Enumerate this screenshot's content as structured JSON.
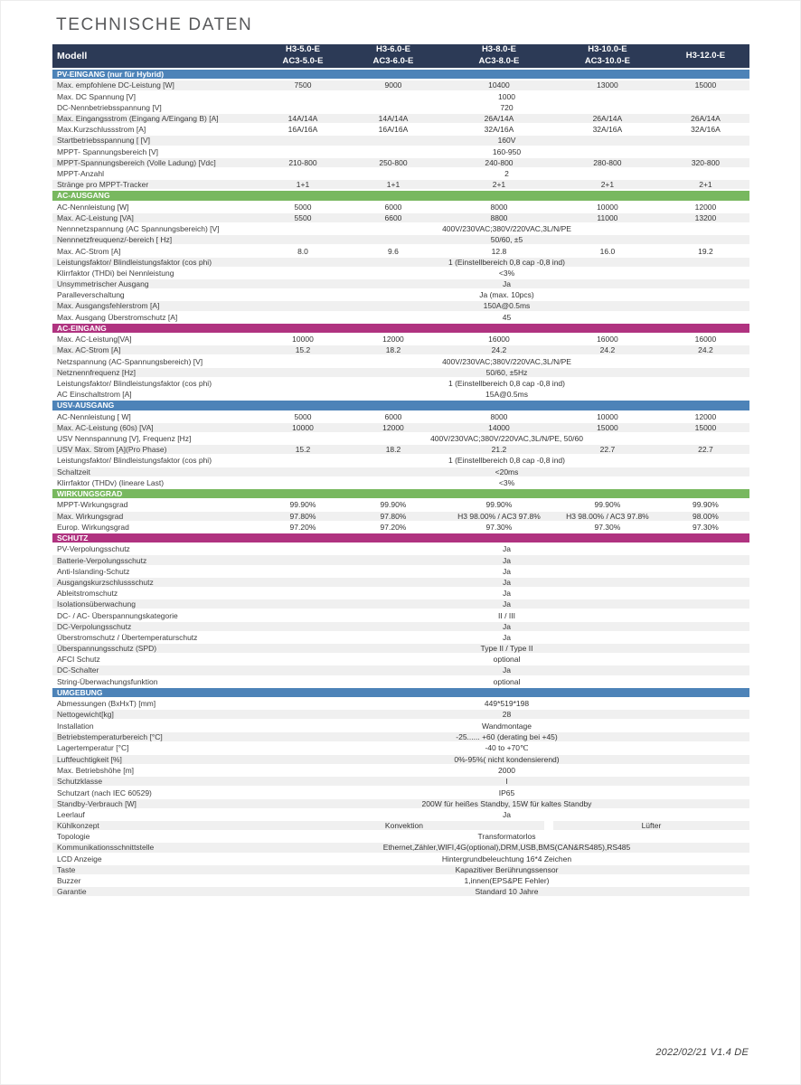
{
  "page": {
    "title": "TECHNISCHE DATEN",
    "footer": "2022/02/21 V1.4 DE"
  },
  "table": {
    "colors": {
      "navy": "#2c3a56",
      "blue": "#4d83b8",
      "green": "#78b85f",
      "magenta": "#b03380",
      "stripe": "#f0f0f0"
    },
    "header": {
      "model_label": "Modell",
      "columns": [
        {
          "line1": "H3-5.0-E",
          "line2": "AC3-5.0-E"
        },
        {
          "line1": "H3-6.0-E",
          "line2": "AC3-6.0-E"
        },
        {
          "line1": "H3-8.0-E",
          "line2": "AC3-8.0-E"
        },
        {
          "line1": "H3-10.0-E",
          "line2": "AC3-10.0-E"
        },
        {
          "line1": "H3-12.0-E",
          "line2": ""
        }
      ]
    },
    "sections": [
      {
        "name": "PV-EINGANG (nur für Hybrid)",
        "color": "blue",
        "gray_rows": [
          0,
          3,
          5,
          7,
          9
        ],
        "rows": [
          {
            "label": "Max. empfohlene DC-Leistung [W]",
            "values": [
              "7500",
              "9000",
              "10400",
              "13000",
              "15000"
            ]
          },
          {
            "label": "Max. DC Spannung [V]",
            "merged": "1000"
          },
          {
            "label": "DC-Nennbetriebsspannung [V]",
            "merged": "720"
          },
          {
            "label": "Max. Eingangsstrom (Eingang A/Eingang B) [A]",
            "values": [
              "14A/14A",
              "14A/14A",
              "26A/14A",
              "26A/14A",
              "26A/14A"
            ]
          },
          {
            "label": "Max.Kurzschlussstrom [A]",
            "values": [
              "16A/16A",
              "16A/16A",
              "32A/16A",
              "32A/16A",
              "32A/16A"
            ]
          },
          {
            "label": "Startbetriebsspannung [ [V]",
            "merged": "160V"
          },
          {
            "label": "MPPT- Spannungsbereich [V]",
            "merged": "160-950"
          },
          {
            "label": "MPPT-Spannungsbereich (Volle Ladung) [Vdc]",
            "values": [
              "210-800",
              "250-800",
              "240-800",
              "280-800",
              "320-800"
            ]
          },
          {
            "label": "MPPT-Anzahl",
            "merged": "2"
          },
          {
            "label": "Stränge pro MPPT-Tracker",
            "values": [
              "1+1",
              "1+1",
              "2+1",
              "2+1",
              "2+1"
            ]
          }
        ]
      },
      {
        "name": "AC-AUSGANG",
        "color": "green",
        "gray_rows": [
          1,
          3,
          5,
          7,
          9
        ],
        "rows": [
          {
            "label": "AC-Nennleistung [W]",
            "values": [
              "5000",
              "6000",
              "8000",
              "10000",
              "12000"
            ]
          },
          {
            "label": "Max. AC-Leistung [VA]",
            "values": [
              "5500",
              "6600",
              "8800",
              "11000",
              "13200"
            ]
          },
          {
            "label": "Nennnetzspannung (AC Spannungsbereich)  [V]",
            "merged": "400V/230VAC;380V/220VAC,3L/N/PE"
          },
          {
            "label": "Nennnetzfreuquenz/-bereich [ Hz]",
            "merged": "50/60, ±5"
          },
          {
            "label": "Max. AC-Strom [A]",
            "values": [
              "8.0",
              "9.6",
              "12.8",
              "16.0",
              "19.2"
            ]
          },
          {
            "label": "Leistungsfaktor/ Blindleistungsfaktor (cos phi)",
            "merged": "1 (Einstellbereich 0,8 cap -0,8 ind)"
          },
          {
            "label": "Klirrfaktor (THDi) bei Nennleistung",
            "merged": "<3%"
          },
          {
            "label": "Unsymmetrischer Ausgang",
            "merged": "Ja"
          },
          {
            "label": "Paralleverschaltung",
            "merged": "Ja (max. 10pcs)"
          },
          {
            "label": "Max. Ausgangsfehlerstrom [A]",
            "merged": "150A@0.5ms"
          },
          {
            "label": "Max. Ausgang Überstromschutz [A]",
            "merged": "45"
          }
        ]
      },
      {
        "name": "AC-EINGANG",
        "color": "magenta",
        "gray_rows": [
          1,
          3
        ],
        "rows": [
          {
            "label": "Max. AC-Leistung[VA]",
            "values": [
              "10000",
              "12000",
              "16000",
              "16000",
              "16000"
            ]
          },
          {
            "label": "Max. AC-Strom [A]",
            "values": [
              "15.2",
              "18.2",
              "24.2",
              "24.2",
              "24.2"
            ]
          },
          {
            "label": "Netzspannung (AC-Spannungsbereich) [V]",
            "merged": "400V/230VAC;380V/220VAC,3L/N/PE"
          },
          {
            "label": "Netznennfrequenz [Hz]",
            "merged": "50/60, ±5Hz"
          },
          {
            "label": "Leistungsfaktor/ Blindleistungsfaktor (cos phi)",
            "merged": "1 (Einstellbereich 0,8 cap -0,8 ind)"
          },
          {
            "label": "AC Einschaltstrom [A]",
            "merged": "15A@0.5ms"
          }
        ]
      },
      {
        "name": "USV-AUSGANG",
        "color": "blue",
        "gray_rows": [
          1,
          3,
          5
        ],
        "rows": [
          {
            "label": "AC-Nennleistung [ W]",
            "values": [
              "5000",
              "6000",
              "8000",
              "10000",
              "12000"
            ]
          },
          {
            "label": "Max. AC-Leistung (60s) [VA]",
            "values": [
              "10000",
              "12000",
              "14000",
              "15000",
              "15000"
            ]
          },
          {
            "label": "USV Nennspannung [V], Frequenz [Hz]",
            "merged": "400V/230VAC;380V/220VAC,3L/N/PE, 50/60"
          },
          {
            "label": "USV Max. Strom [A](Pro Phase)",
            "values": [
              "15.2",
              "18.2",
              "21.2",
              "22.7",
              "22.7"
            ]
          },
          {
            "label": "Leistungsfaktor/ Blindleistungsfaktor (cos phi)",
            "merged": "1 (Einstellbereich 0,8 cap -0,8 ind)"
          },
          {
            "label": "Schaltzeit",
            "merged": "<20ms"
          },
          {
            "label": "Klirrfaktor (THDv) (lineare Last)",
            "merged": "<3%"
          }
        ]
      },
      {
        "name": "WIRKUNGSGRAD",
        "color": "green",
        "gray_rows": [
          1
        ],
        "rows": [
          {
            "label": "MPPT-Wirkungsgrad",
            "values": [
              "99.90%",
              "99.90%",
              "99.90%",
              "99.90%",
              "99.90%"
            ]
          },
          {
            "label": "Max. Wirkungsgrad",
            "values": [
              "97.80%",
              "97.80%",
              "H3 98.00% / AC3 97.8%",
              "H3 98.00% / AC3 97.8%",
              "98.00%"
            ]
          },
          {
            "label": "Europ. Wirkungsgrad",
            "values": [
              "97.20%",
              "97.20%",
              "97.30%",
              "97.30%",
              "97.30%"
            ]
          }
        ]
      },
      {
        "name": "SCHUTZ",
        "color": "magenta",
        "gray_rows": [
          1,
          3,
          5,
          7,
          9,
          11
        ],
        "rows": [
          {
            "label": "PV-Verpolungsschutz",
            "merged": "Ja"
          },
          {
            "label": "Batterie-Verpolungsschutz",
            "merged": "Ja"
          },
          {
            "label": "Anti-Islanding-Schutz",
            "merged": "Ja"
          },
          {
            "label": "Ausgangskurzschlussschutz",
            "merged": "Ja"
          },
          {
            "label": "Ableitstromschutz",
            "merged": "Ja"
          },
          {
            "label": "Isolationsüberwachung",
            "merged": "Ja"
          },
          {
            "label": "DC- / AC- Überspannungskategorie",
            "merged": "II / III"
          },
          {
            "label": "DC-Verpolungsschutz",
            "merged": "Ja"
          },
          {
            "label": "Überstromschutz / Übertemperaturschutz",
            "merged": "Ja"
          },
          {
            "label": "Überspannungsschutz (SPD)",
            "merged": "Type II / Type II"
          },
          {
            "label": "AFCI Schutz",
            "merged": "optional"
          },
          {
            "label": "DC-Schalter",
            "merged": "Ja"
          },
          {
            "label": "String-Überwachungsfunktion",
            "merged": "optional"
          }
        ]
      },
      {
        "name": "UMGEBUNG",
        "color": "blue",
        "gray_rows": [
          1,
          3,
          5,
          7,
          9,
          11,
          13,
          15,
          17
        ],
        "rows": [
          {
            "label": "Abmessungen (BxHxT) [mm]",
            "merged": "449*519*198"
          },
          {
            "label": "Nettogewicht[kg]",
            "merged": "28"
          },
          {
            "label": "Installation",
            "merged": "Wandmontage"
          },
          {
            "label": "Betriebstemperaturbereich [°C]",
            "merged": "-25...... +60 (derating bei +45)"
          },
          {
            "label": "Lagertemperatur [°C]",
            "merged": "-40 to +70℃"
          },
          {
            "label": "Luftfeuchtigkeit [%]",
            "merged": "0%-95%( nicht kondensierend)"
          },
          {
            "label": "Max. Betriebshöhe [m]",
            "merged": "2000"
          },
          {
            "label": "Schutzklasse",
            "merged": "I"
          },
          {
            "label": "Schutzart (nach IEC 60529)",
            "merged": "IP65"
          },
          {
            "label": "Standby-Verbrauch [W]",
            "merged": "200W für heißes Standby, 15W für kaltes Standby"
          },
          {
            "label": "Leerlauf",
            "merged": "Ja"
          },
          {
            "label": "Kühlkonzept",
            "split": [
              {
                "text": "Konvektion",
                "span": 3
              },
              {
                "text": "Lüfter",
                "span": 2
              }
            ]
          },
          {
            "label": "Topologie",
            "merged": "Transformatorlos"
          },
          {
            "label": "Kommunikationsschnittstelle",
            "merged": "Ethernet,Zähler,WIFI,4G(optional),DRM,USB,BMS(CAN&RS485),RS485"
          },
          {
            "label": "LCD Anzeige",
            "merged": "Hintergrundbeleuchtung 16*4 Zeichen"
          },
          {
            "label": "Taste",
            "merged": "Kapazitiver Berührungssensor"
          },
          {
            "label": "Buzzer",
            "merged": "1,innen(EPS&PE Fehler)"
          },
          {
            "label": "Garantie",
            "merged": "Standard 10 Jahre"
          }
        ]
      }
    ]
  }
}
